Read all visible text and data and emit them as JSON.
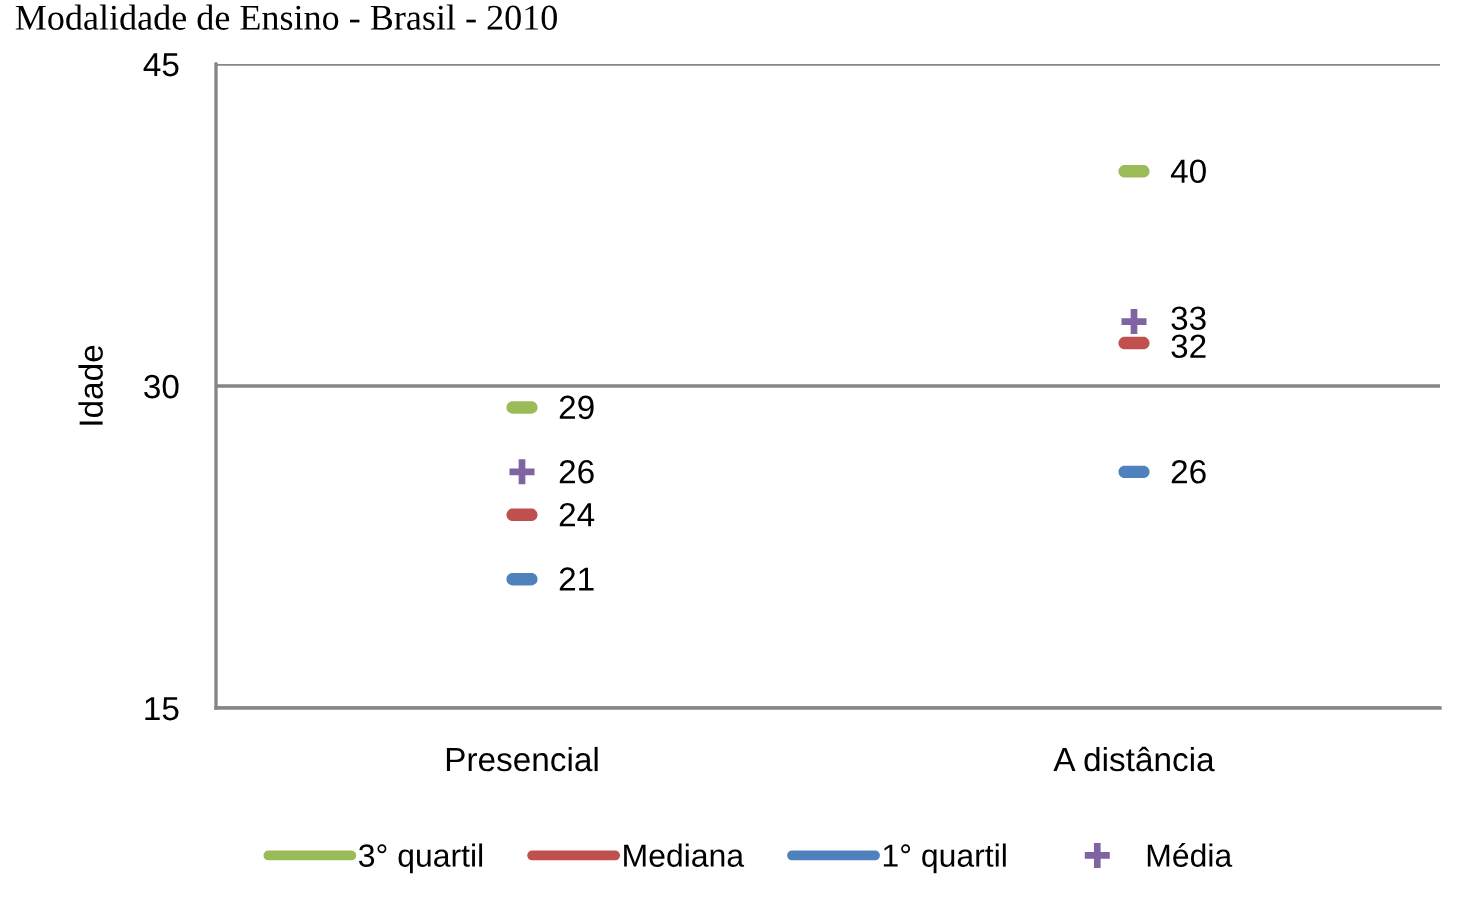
{
  "chart_data": {
    "type": "scatter",
    "title": "Modalidade de Ensino - Brasil - 2010",
    "ylabel": "Idade",
    "categories": [
      "Presencial",
      "A distância"
    ],
    "series": [
      {
        "name": "3° quartil",
        "color": "#9bbb59",
        "values": [
          29,
          40
        ]
      },
      {
        "name": "Mediana",
        "color": "#c0504d",
        "values": [
          24,
          32
        ]
      },
      {
        "name": "1° quartil",
        "color": "#4f81bd",
        "values": [
          21,
          26
        ]
      },
      {
        "name": "Média",
        "color": "#8064a2",
        "values": [
          26,
          33
        ],
        "marker": "cross"
      }
    ],
    "ylim": [
      15,
      45
    ],
    "yticks": [
      15,
      30,
      45
    ],
    "grid": "y",
    "legend": "bottom",
    "data_labels": true
  }
}
